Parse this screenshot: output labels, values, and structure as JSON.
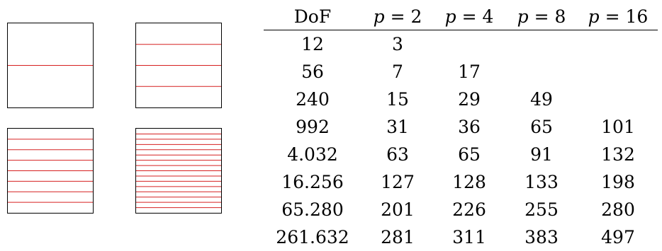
{
  "table": {
    "headers": [
      {
        "var": "",
        "op": "",
        "value": "DoF"
      },
      {
        "var": "p",
        "op": " = ",
        "value": "2"
      },
      {
        "var": "p",
        "op": " = ",
        "value": "4"
      },
      {
        "var": "p",
        "op": " = ",
        "value": "8"
      },
      {
        "var": "p",
        "op": " = ",
        "value": "16"
      }
    ],
    "rows": [
      [
        "12",
        "3",
        "",
        "",
        ""
      ],
      [
        "56",
        "7",
        "17",
        "",
        ""
      ],
      [
        "240",
        "15",
        "29",
        "49",
        ""
      ],
      [
        "992",
        "31",
        "36",
        "65",
        "101"
      ],
      [
        "4.032",
        "63",
        "65",
        "91",
        "132"
      ],
      [
        "16.256",
        "127",
        "128",
        "133",
        "198"
      ],
      [
        "65.280",
        "201",
        "226",
        "255",
        "280"
      ],
      [
        "261.632",
        "281",
        "311",
        "383",
        "497"
      ]
    ]
  },
  "mesh_panels": [
    {
      "interfaces": 1
    },
    {
      "interfaces": 3
    },
    {
      "interfaces": 7
    },
    {
      "interfaces": 15
    }
  ],
  "colors": {
    "interface_line": "#d62020",
    "border": "#000000"
  }
}
